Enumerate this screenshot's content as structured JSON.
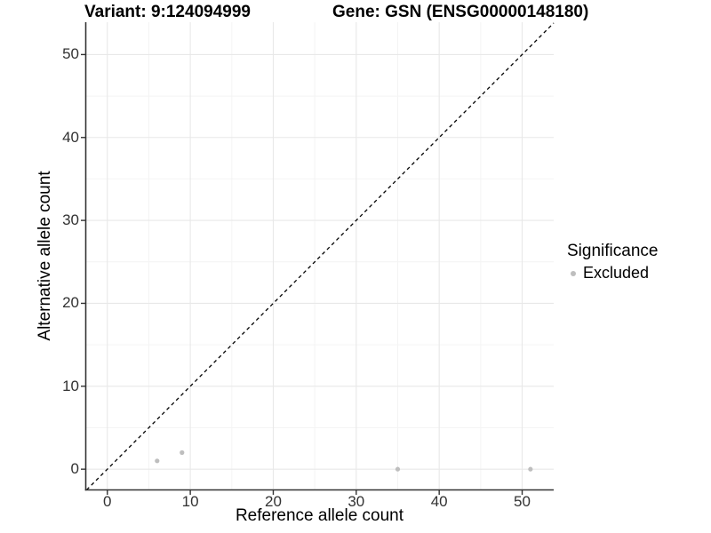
{
  "header": {
    "variant_title": "Variant: 9:124094999",
    "gene_title": "Gene: GSN (ENSG00000148180)"
  },
  "chart_data": {
    "type": "scatter",
    "xlabel": "Reference allele count",
    "ylabel": "Alternative allele count",
    "xlim": [
      -2.6,
      53.8
    ],
    "ylim": [
      -2.5,
      53.9
    ],
    "xticks": [
      0,
      10,
      20,
      30,
      40,
      50
    ],
    "yticks": [
      0,
      10,
      20,
      30,
      40,
      50
    ],
    "xminor": [
      5,
      15,
      25,
      35,
      45
    ],
    "yminor": [
      5,
      15,
      25,
      35,
      45
    ],
    "grid": true,
    "identity_line": {
      "slope": 1,
      "intercept": 0,
      "style": "dashed",
      "color": "#000000"
    },
    "series": [
      {
        "name": "Excluded",
        "color": "#BEBEBE",
        "points": [
          [
            6,
            1
          ],
          [
            9,
            2
          ],
          [
            35,
            0
          ],
          [
            51,
            0
          ]
        ]
      }
    ],
    "legend": {
      "title": "Significance",
      "position": "right",
      "items": [
        {
          "label": "Excluded",
          "color": "#BEBEBE"
        }
      ]
    },
    "colors": {
      "axis_line": "#333333",
      "tick_mark": "#333333",
      "grid_major": "#E8E8E8",
      "grid_minor": "#F4F4F4",
      "tick_text": "#323232"
    }
  }
}
